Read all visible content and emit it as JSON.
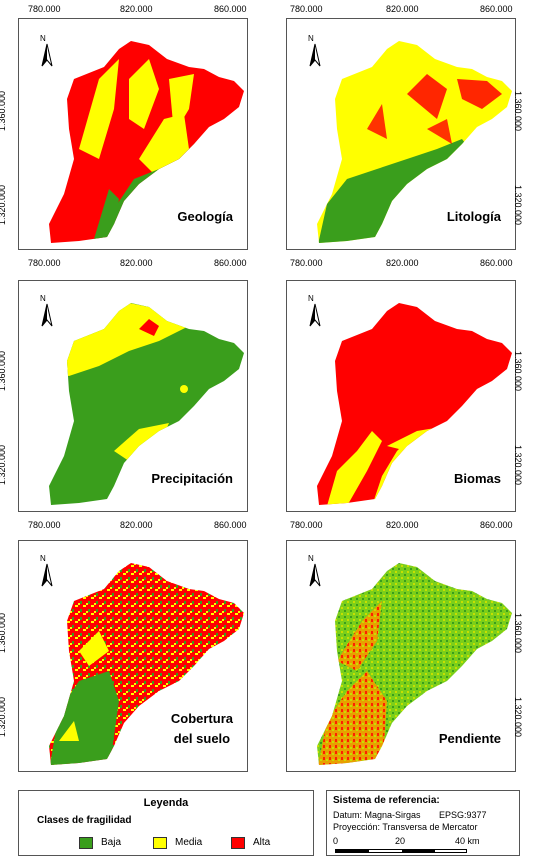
{
  "panels": [
    {
      "title": "Geología"
    },
    {
      "title": "Litología"
    },
    {
      "title": "Precipitación"
    },
    {
      "title": "Biomas"
    },
    {
      "title": "Cobertura del suelo",
      "line1": "Cobertura",
      "line2": "del suelo"
    },
    {
      "title": "Pendiente"
    }
  ],
  "axes": {
    "x_ticks": [
      "780.000",
      "820.000",
      "860.000"
    ],
    "y_ticks": [
      "1.360.000",
      "1.320.000"
    ]
  },
  "north_label": "N",
  "colors": {
    "baja": "#3a9e1c",
    "media": "#ffff00",
    "alta": "#ff0000"
  },
  "legend": {
    "title": "Leyenda",
    "subtitle": "Clases de fragilidad",
    "items": [
      {
        "label": "Baja",
        "color": "#3a9e1c"
      },
      {
        "label": "Media",
        "color": "#ffff00"
      },
      {
        "label": "Alta",
        "color": "#ff0000"
      }
    ]
  },
  "reference": {
    "title": "Sistema de referencia:",
    "datum": "Datum: Magna-Sirgas",
    "epsg": "EPSG:9377",
    "projection": "Proyección: Transversa de Mercator",
    "scale_labels": [
      "0",
      "20",
      "40 km"
    ]
  }
}
